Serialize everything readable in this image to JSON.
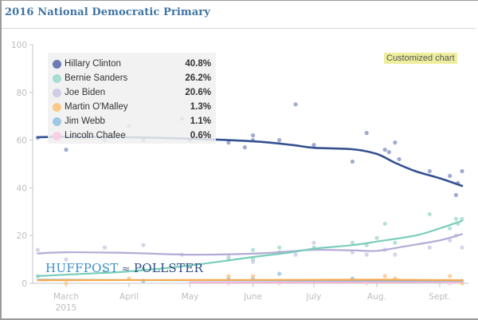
{
  "header": {
    "title": "2016 National Democratic Primary"
  },
  "badge": {
    "label": "Customized chart"
  },
  "watermark": {
    "left": "HUFFPOST",
    "mid": "≈",
    "right": "POLLSTER"
  },
  "legend": {
    "items": [
      {
        "name": "Hillary Clinton",
        "value": "40.8%",
        "color": "#6b7bb3"
      },
      {
        "name": "Bernie Sanders",
        "value": "26.2%",
        "color": "#a6ddd2"
      },
      {
        "name": "Joe Biden",
        "value": "20.6%",
        "color": "#d0cce6"
      },
      {
        "name": "Martin O'Malley",
        "value": "1.3%",
        "color": "#fcc98a"
      },
      {
        "name": "Jim Webb",
        "value": "1.1%",
        "color": "#9cc8e3"
      },
      {
        "name": "Lincoln Chafee",
        "value": "0.6%",
        "color": "#f9cfe6"
      }
    ]
  },
  "chart_data": {
    "type": "line",
    "title": "2016 National Democratic Primary",
    "xlabel": "",
    "ylabel": "",
    "ylim": [
      0,
      100
    ],
    "yticks": [
      0,
      20,
      40,
      60,
      80,
      100
    ],
    "xlim": [
      "2015-02-15",
      "2015-09-13"
    ],
    "xticks": [
      {
        "date": "2015-03-01",
        "label": "March",
        "sublabel": "2015"
      },
      {
        "date": "2015-04-01",
        "label": "April",
        "sublabel": ""
      },
      {
        "date": "2015-05-01",
        "label": "May",
        "sublabel": ""
      },
      {
        "date": "2015-06-01",
        "label": "June",
        "sublabel": ""
      },
      {
        "date": "2015-07-01",
        "label": "July",
        "sublabel": ""
      },
      {
        "date": "2015-08-01",
        "label": "Aug.",
        "sublabel": ""
      },
      {
        "date": "2015-09-01",
        "label": "Sept.",
        "sublabel": ""
      }
    ],
    "grid": false,
    "legend_position": "top-left",
    "series": [
      {
        "name": "Hillary Clinton",
        "line_color": "#34508f",
        "point_color": "#8f9cc4",
        "trend": [
          [
            "2015-02-15",
            61.2
          ],
          [
            "2015-03-01",
            61.4
          ],
          [
            "2015-04-01",
            61.2
          ],
          [
            "2015-05-01",
            60.6
          ],
          [
            "2015-06-01",
            59.5
          ],
          [
            "2015-06-20",
            58.0
          ],
          [
            "2015-07-01",
            56.8
          ],
          [
            "2015-07-20",
            56.2
          ],
          [
            "2015-08-01",
            54.2
          ],
          [
            "2015-08-10",
            50.5
          ],
          [
            "2015-08-20",
            47.0
          ],
          [
            "2015-09-01",
            44.0
          ],
          [
            "2015-09-12",
            40.8
          ]
        ],
        "points": [
          [
            "2015-02-15",
            61
          ],
          [
            "2015-03-01",
            56
          ],
          [
            "2015-03-20",
            60
          ],
          [
            "2015-04-01",
            66
          ],
          [
            "2015-04-08",
            60
          ],
          [
            "2015-04-27",
            69
          ],
          [
            "2015-05-01",
            60
          ],
          [
            "2015-05-20",
            59
          ],
          [
            "2015-05-28",
            57
          ],
          [
            "2015-06-01",
            60
          ],
          [
            "2015-06-01",
            62
          ],
          [
            "2015-06-14",
            60
          ],
          [
            "2015-06-22",
            75
          ],
          [
            "2015-07-01",
            58
          ],
          [
            "2015-07-20",
            51
          ],
          [
            "2015-07-27",
            63
          ],
          [
            "2015-08-05",
            56
          ],
          [
            "2015-08-07",
            55
          ],
          [
            "2015-08-10",
            59
          ],
          [
            "2015-08-12",
            52
          ],
          [
            "2015-08-27",
            47
          ],
          [
            "2015-09-06",
            45
          ],
          [
            "2015-09-09",
            37
          ],
          [
            "2015-09-10",
            42
          ],
          [
            "2015-09-12",
            47
          ]
        ]
      },
      {
        "name": "Bernie Sanders",
        "line_color": "#79cdbb",
        "point_color": "#a6ddd2",
        "trend": [
          [
            "2015-02-15",
            3.0
          ],
          [
            "2015-03-01",
            3.6
          ],
          [
            "2015-04-01",
            5.0
          ],
          [
            "2015-05-01",
            7.5
          ],
          [
            "2015-06-01",
            11.0
          ],
          [
            "2015-06-20",
            13.0
          ],
          [
            "2015-07-01",
            14.5
          ],
          [
            "2015-07-20",
            16.0
          ],
          [
            "2015-08-01",
            17.5
          ],
          [
            "2015-08-20",
            20.0
          ],
          [
            "2015-09-01",
            23.0
          ],
          [
            "2015-09-12",
            26.2
          ]
        ],
        "points": [
          [
            "2015-02-15",
            3
          ],
          [
            "2015-03-20",
            5
          ],
          [
            "2015-04-08",
            6
          ],
          [
            "2015-05-20",
            10
          ],
          [
            "2015-06-01",
            10
          ],
          [
            "2015-06-01",
            14
          ],
          [
            "2015-06-14",
            15
          ],
          [
            "2015-07-01",
            15
          ],
          [
            "2015-07-20",
            17
          ],
          [
            "2015-07-27",
            16
          ],
          [
            "2015-08-01",
            19
          ],
          [
            "2015-08-05",
            25
          ],
          [
            "2015-08-10",
            17
          ],
          [
            "2015-08-27",
            29
          ],
          [
            "2015-09-06",
            23
          ],
          [
            "2015-09-09",
            27
          ],
          [
            "2015-09-10",
            25
          ],
          [
            "2015-09-12",
            27
          ]
        ]
      },
      {
        "name": "Joe Biden",
        "line_color": "#b3abd6",
        "point_color": "#d0cce6",
        "trend": [
          [
            "2015-02-15",
            12.5
          ],
          [
            "2015-03-01",
            13.0
          ],
          [
            "2015-04-01",
            12.7
          ],
          [
            "2015-05-01",
            12.0
          ],
          [
            "2015-06-01",
            12.4
          ],
          [
            "2015-06-20",
            13.4
          ],
          [
            "2015-07-01",
            14.0
          ],
          [
            "2015-07-20",
            13.8
          ],
          [
            "2015-08-01",
            13.6
          ],
          [
            "2015-08-15",
            15.5
          ],
          [
            "2015-09-01",
            18.0
          ],
          [
            "2015-09-12",
            20.6
          ]
        ],
        "points": [
          [
            "2015-02-15",
            14
          ],
          [
            "2015-03-01",
            10
          ],
          [
            "2015-03-20",
            15
          ],
          [
            "2015-04-08",
            16
          ],
          [
            "2015-04-27",
            12
          ],
          [
            "2015-05-20",
            11
          ],
          [
            "2015-06-01",
            9
          ],
          [
            "2015-06-14",
            13
          ],
          [
            "2015-06-22",
            12
          ],
          [
            "2015-07-01",
            17
          ],
          [
            "2015-07-20",
            13
          ],
          [
            "2015-07-27",
            12
          ],
          [
            "2015-08-05",
            14
          ],
          [
            "2015-08-10",
            12
          ],
          [
            "2015-08-27",
            15
          ],
          [
            "2015-09-06",
            18
          ],
          [
            "2015-09-09",
            20
          ],
          [
            "2015-09-12",
            15
          ]
        ]
      },
      {
        "name": "Martin O'Malley",
        "line_color": "#f5a94e",
        "point_color": "#fcc98a",
        "trend": [
          [
            "2015-02-15",
            1.3
          ],
          [
            "2015-06-01",
            1.4
          ],
          [
            "2015-08-01",
            1.5
          ],
          [
            "2015-09-12",
            1.3
          ]
        ],
        "points": [
          [
            "2015-03-01",
            0
          ],
          [
            "2015-04-01",
            2
          ],
          [
            "2015-05-20",
            3
          ],
          [
            "2015-06-01",
            3
          ],
          [
            "2015-07-20",
            1
          ],
          [
            "2015-08-05",
            3
          ],
          [
            "2015-08-10",
            2
          ],
          [
            "2015-09-06",
            3
          ],
          [
            "2015-09-12",
            0
          ]
        ]
      },
      {
        "name": "Jim Webb",
        "line_color": "#7fb6dc",
        "point_color": "#9cc8e3",
        "trend": [
          [
            "2015-02-15",
            1.5
          ],
          [
            "2015-06-01",
            1.2
          ],
          [
            "2015-09-12",
            1.1
          ]
        ],
        "points": [
          [
            "2015-04-08",
            1
          ],
          [
            "2015-05-20",
            2
          ],
          [
            "2015-06-01",
            2
          ],
          [
            "2015-06-14",
            4
          ],
          [
            "2015-07-20",
            2
          ],
          [
            "2015-08-01",
            1
          ],
          [
            "2015-09-12",
            1
          ]
        ]
      },
      {
        "name": "Lincoln Chafee",
        "line_color": "#f4b6d6",
        "point_color": "#f9cfe6",
        "trend": [
          [
            "2015-05-01",
            0.3
          ],
          [
            "2015-07-01",
            0.4
          ],
          [
            "2015-09-12",
            0.6
          ]
        ],
        "points": [
          [
            "2015-05-20",
            0
          ],
          [
            "2015-06-14",
            0
          ],
          [
            "2015-07-27",
            0
          ],
          [
            "2015-09-06",
            0
          ]
        ]
      }
    ]
  }
}
